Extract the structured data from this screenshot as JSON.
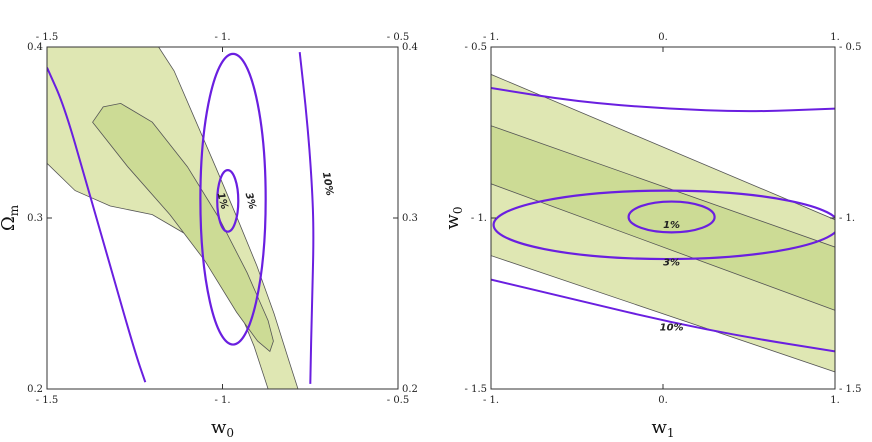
{
  "chart_data": [
    {
      "type": "contour",
      "xlabel": "w",
      "xlabel_sub": "0",
      "ylabel": "Ω",
      "ylabel_sub": "m",
      "xlim": [
        -1.5,
        -0.5
      ],
      "ylim": [
        0.2,
        0.4
      ],
      "x_ticks": [
        -1.5,
        -1.0,
        -0.5
      ],
      "x_tick_labels": [
        "- 1.5",
        "- 1.",
        "- 0.5"
      ],
      "y_ticks": [
        0.2,
        0.3,
        0.4
      ],
      "y_tick_labels": [
        "0.2",
        "0.3",
        "0.4"
      ],
      "colors": {
        "outer_region": "#dfe7b3",
        "inner_region": "#ccdb95",
        "contour_line": "#6a1fe0",
        "frame": "#333333"
      },
      "regions": [
        {
          "name": "outer",
          "points": [
            [
              -1.5,
              0.332
            ],
            [
              -1.5,
              0.4
            ],
            [
              -1.182,
              0.4
            ],
            [
              -1.138,
              0.386
            ],
            [
              -1.079,
              0.358
            ],
            [
              -1.02,
              0.33
            ],
            [
              -0.96,
              0.301
            ],
            [
              -0.902,
              0.272
            ],
            [
              -0.853,
              0.244
            ],
            [
              -0.81,
              0.216
            ],
            [
              -0.785,
              0.2
            ],
            [
              -0.87,
              0.2
            ],
            [
              -0.91,
              0.225
            ],
            [
              -0.96,
              0.25
            ],
            [
              -1.02,
              0.273
            ],
            [
              -1.1,
              0.29
            ],
            [
              -1.2,
              0.302
            ],
            [
              -1.32,
              0.307
            ],
            [
              -1.42,
              0.316
            ]
          ]
        },
        {
          "name": "inner",
          "points": [
            [
              -1.37,
              0.356
            ],
            [
              -1.34,
              0.365
            ],
            [
              -1.29,
              0.367
            ],
            [
              -1.2,
              0.356
            ],
            [
              -1.1,
              0.33
            ],
            [
              -1.01,
              0.3
            ],
            [
              -0.93,
              0.268
            ],
            [
              -0.87,
              0.24
            ],
            [
              -0.855,
              0.228
            ],
            [
              -0.865,
              0.222
            ],
            [
              -0.9,
              0.228
            ],
            [
              -0.96,
              0.245
            ],
            [
              -1.05,
              0.275
            ],
            [
              -1.15,
              0.302
            ],
            [
              -1.27,
              0.33
            ]
          ]
        }
      ],
      "contours": [
        {
          "label": "1%",
          "type": "ellipse",
          "center": [
            -0.985,
            0.31
          ],
          "rx": 0.03,
          "ry": 0.018,
          "label_pos": [
            -1.0,
            0.31
          ],
          "label_rotate": 75
        },
        {
          "label": "3%",
          "type": "ellipse",
          "center": [
            -0.97,
            0.311
          ],
          "rx": 0.093,
          "ry": 0.085,
          "label_pos": [
            -0.92,
            0.31
          ],
          "label_rotate": 75
        },
        {
          "label": "10%",
          "type": "curve",
          "points": [
            [
              -1.5,
              0.388
            ],
            [
              -1.45,
              0.365
            ],
            [
              -1.38,
              0.315
            ],
            [
              -1.31,
              0.265
            ],
            [
              -1.25,
              0.222
            ],
            [
              -1.22,
              0.204
            ]
          ],
          "label_pos": null,
          "label_rotate": 0
        },
        {
          "label": "10%",
          "type": "curve",
          "points": [
            [
              -0.78,
              0.397
            ],
            [
              -0.76,
              0.36
            ],
            [
              -0.745,
              0.32
            ],
            [
              -0.74,
              0.29
            ],
            [
              -0.745,
              0.25
            ],
            [
              -0.75,
              0.203
            ]
          ],
          "label_pos": [
            -0.7,
            0.32
          ],
          "label_rotate": 80
        }
      ]
    },
    {
      "type": "contour",
      "xlabel": "w",
      "xlabel_sub": "1",
      "ylabel": "w",
      "ylabel_sub": "0",
      "xlim": [
        -1.0,
        1.0
      ],
      "ylim": [
        -1.5,
        -0.5
      ],
      "x_ticks": [
        -1.0,
        0.0,
        1.0
      ],
      "x_tick_labels": [
        "- 1.",
        "0.",
        "1."
      ],
      "y_ticks": [
        -1.5,
        -1.0,
        -0.5
      ],
      "y_tick_labels": [
        "- 1.5",
        "- 1.",
        "- 0.5"
      ],
      "colors": {
        "outer_region": "#dfe7b3",
        "inner_region": "#ccdb95",
        "contour_line": "#6a1fe0",
        "frame": "#333333"
      },
      "regions": [
        {
          "name": "outer",
          "points": [
            [
              -1.0,
              -0.58
            ],
            [
              1.0,
              -1.005
            ],
            [
              1.0,
              -1.45
            ],
            [
              -1.0,
              -1.11
            ]
          ]
        },
        {
          "name": "inner",
          "points": [
            [
              -1.0,
              -0.73
            ],
            [
              1.0,
              -1.085
            ],
            [
              1.0,
              -1.27
            ],
            [
              -1.0,
              -0.9
            ]
          ]
        }
      ],
      "contours": [
        {
          "label": "1%",
          "type": "ellipse",
          "center": [
            0.05,
            -0.997
          ],
          "rx": 0.25,
          "ry": 0.045,
          "label_pos": [
            0.05,
            -1.02
          ],
          "label_rotate": 0
        },
        {
          "label": "3%",
          "type": "ellipse",
          "center": [
            0.02,
            -1.02
          ],
          "rx": 1.005,
          "ry": 0.1,
          "label_pos": [
            0.05,
            -1.13
          ],
          "label_rotate": 0
        },
        {
          "label": "10%",
          "type": "curve",
          "points": [
            [
              -1.0,
              -0.62
            ],
            [
              -0.5,
              -0.66
            ],
            [
              0.0,
              -0.68
            ],
            [
              0.5,
              -0.69
            ],
            [
              1.0,
              -0.68
            ]
          ],
          "label_pos": null,
          "label_rotate": 0
        },
        {
          "label": "10%",
          "type": "curve",
          "points": [
            [
              -1.0,
              -1.18
            ],
            [
              -0.5,
              -1.24
            ],
            [
              0.0,
              -1.3
            ],
            [
              0.5,
              -1.35
            ],
            [
              1.0,
              -1.39
            ]
          ],
          "label_pos": [
            0.05,
            -1.32
          ],
          "label_rotate": 0
        }
      ]
    }
  ]
}
